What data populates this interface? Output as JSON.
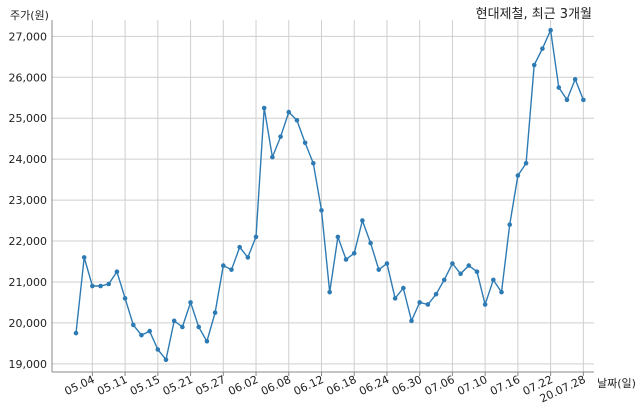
{
  "chart_data": {
    "type": "line",
    "title": "현대제철, 최근 3개월",
    "xlabel": "날짜(일)",
    "ylabel": "주가(원)",
    "ylim": [
      18800,
      27400
    ],
    "yticks": [
      19000,
      20000,
      21000,
      22000,
      23000,
      24000,
      25000,
      26000,
      27000
    ],
    "ytick_labels": [
      "19,000",
      "20,000",
      "21,000",
      "22,000",
      "23,000",
      "24,000",
      "25,000",
      "26,000",
      "27,000"
    ],
    "xticks": [
      "05.04",
      "05.11",
      "05.15",
      "05.21",
      "05.27",
      "06.02",
      "06.08",
      "06.12",
      "06.18",
      "06.24",
      "06.30",
      "07.06",
      "07.10",
      "07.16",
      "07.22",
      "20.07.28"
    ],
    "xtick_positions": [
      2,
      6,
      10,
      14,
      18,
      22,
      26,
      30,
      34,
      38,
      42,
      46,
      50,
      54,
      58,
      62
    ],
    "grid": true,
    "series": [
      {
        "color": "#2e7bb4",
        "values": [
          19750,
          21600,
          20900,
          20900,
          20950,
          21250,
          20600,
          19950,
          19700,
          19800,
          19350,
          19100,
          20050,
          19900,
          20500,
          19900,
          19550,
          20250,
          21400,
          21300,
          21850,
          21600,
          22100,
          25250,
          24050,
          24550,
          25150,
          24950,
          24400,
          23900,
          22750,
          20750,
          22100,
          21550,
          21700,
          22500,
          21950,
          21300,
          21450,
          20600,
          20850,
          20050,
          20500,
          20450,
          20700,
          21050,
          21450,
          21200,
          21400,
          21250,
          20450,
          21050,
          20750,
          22400,
          23600,
          23900,
          26300,
          26700,
          27150,
          25750,
          25450,
          25950,
          25450
        ]
      }
    ]
  }
}
